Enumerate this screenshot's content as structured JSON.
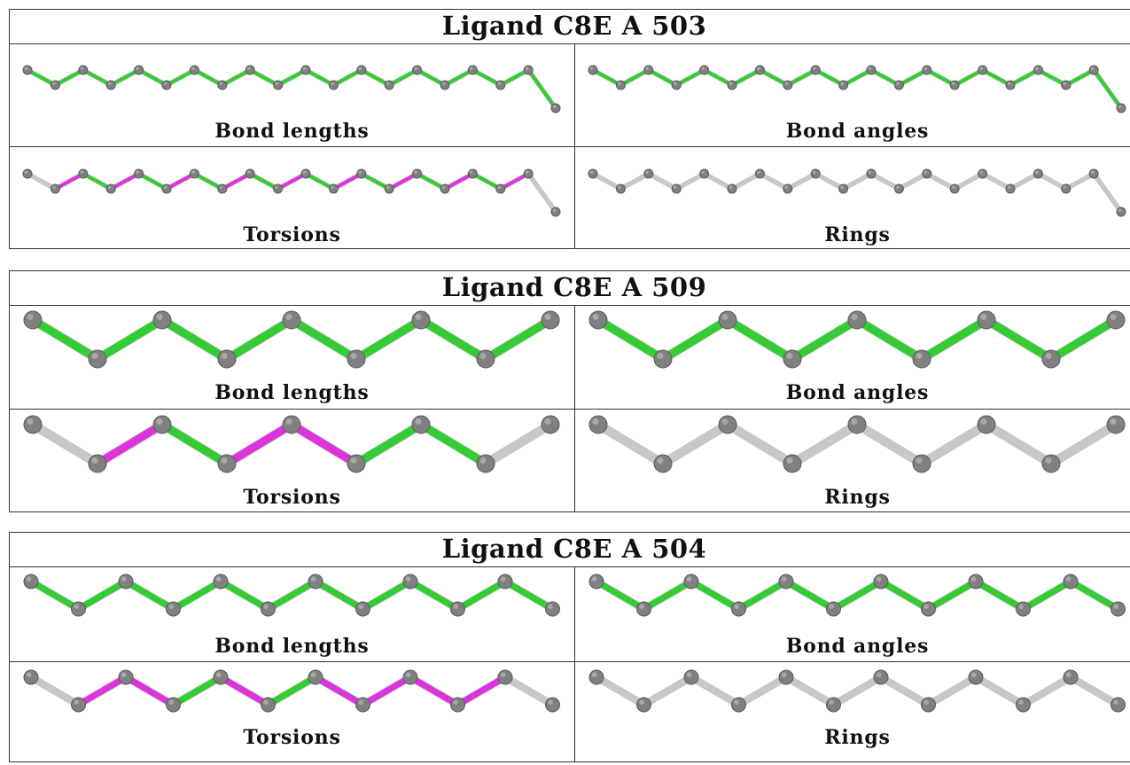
{
  "blocks": [
    {
      "title": "Ligand C8E A 503",
      "panels": {
        "bond_lengths": "Bond lengths",
        "bond_angles": "Bond angles",
        "torsions": "Torsions",
        "rings": "Rings"
      }
    },
    {
      "title": "Ligand C8E A 509",
      "panels": {
        "bond_lengths": "Bond lengths",
        "bond_angles": "Bond angles",
        "torsions": "Torsions",
        "rings": "Rings"
      }
    },
    {
      "title": "Ligand C8E A 504",
      "panels": {
        "bond_lengths": "Bond lengths",
        "bond_angles": "Bond angles",
        "torsions": "Torsions",
        "rings": "Rings"
      }
    }
  ],
  "colors": {
    "green": "#33cc33",
    "magenta": "#dd33dd",
    "grey_bond": "#c8c8c8",
    "atom": "#808080"
  }
}
